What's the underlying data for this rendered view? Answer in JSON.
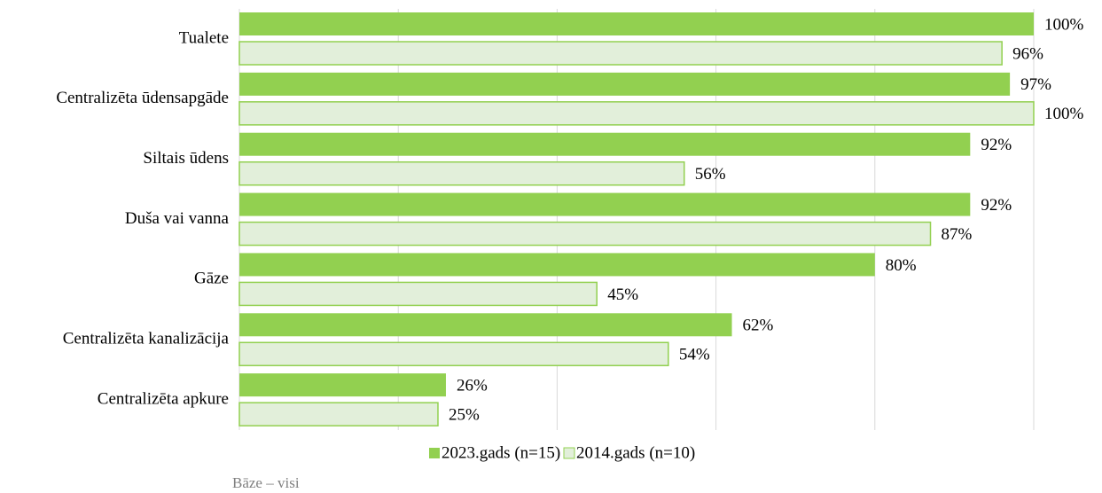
{
  "chart_data": {
    "type": "bar",
    "orientation": "horizontal",
    "categories": [
      "Tualete",
      "Centralizēta ūdensapgāde",
      "Siltais ūdens",
      "Duša vai vanna",
      "Gāze",
      "Centralizēta kanalizācija",
      "Centralizēta apkure"
    ],
    "series": [
      {
        "name": "2023.gads (n=15)",
        "color": "#92d050",
        "values": [
          100,
          97,
          92,
          92,
          80,
          62,
          26
        ],
        "value_labels": [
          "100%",
          "97%",
          "92%",
          "92%",
          "80%",
          "62%",
          "26%"
        ]
      },
      {
        "name": "2014.gads (n=10)",
        "color": "#e2efda",
        "border": "#92d050",
        "values": [
          96,
          100,
          56,
          87,
          45,
          54,
          25
        ],
        "value_labels": [
          "96%",
          "100%",
          "56%",
          "87%",
          "45%",
          "54%",
          "25%"
        ]
      }
    ],
    "xlim": [
      0,
      100
    ],
    "xticks": [
      0,
      20,
      40,
      60,
      80,
      100
    ],
    "grid": true,
    "legend": "bottom",
    "note": "Bāze – visi"
  }
}
